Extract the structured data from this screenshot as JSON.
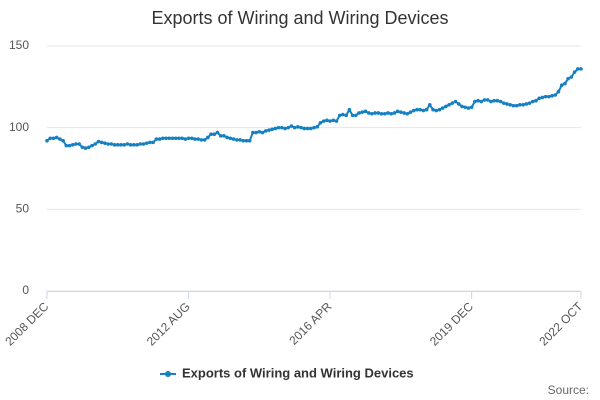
{
  "chart_data": {
    "type": "line",
    "title": "Exports of Wiring and Wiring Devices",
    "source": "Source:",
    "categories": [
      "2008 DEC",
      null,
      null,
      null,
      null,
      null,
      null,
      null,
      null,
      null,
      null,
      null,
      null,
      null,
      null,
      null,
      null,
      null,
      null,
      null,
      null,
      null,
      null,
      null,
      null,
      null,
      null,
      null,
      null,
      null,
      null,
      null,
      null,
      null,
      null,
      null,
      null,
      null,
      null,
      null,
      null,
      null,
      null,
      null,
      "2012 AUG",
      null,
      null,
      null,
      null,
      null,
      null,
      null,
      null,
      null,
      null,
      null,
      null,
      null,
      null,
      null,
      null,
      null,
      null,
      null,
      null,
      null,
      null,
      null,
      null,
      null,
      null,
      null,
      null,
      null,
      null,
      null,
      null,
      null,
      null,
      null,
      null,
      null,
      null,
      null,
      null,
      null,
      null,
      null,
      "2016 APR",
      null,
      null,
      null,
      null,
      null,
      null,
      null,
      null,
      null,
      null,
      null,
      null,
      null,
      null,
      null,
      null,
      null,
      null,
      null,
      null,
      null,
      null,
      null,
      null,
      null,
      null,
      null,
      null,
      null,
      null,
      null,
      null,
      null,
      null,
      null,
      null,
      null,
      null,
      null,
      null,
      null,
      null,
      null,
      "2019 DEC",
      null,
      null,
      null,
      null,
      null,
      null,
      null,
      null,
      null,
      null,
      null,
      null,
      null,
      null,
      null,
      null,
      null,
      null,
      null,
      null,
      null,
      null,
      null,
      null,
      null,
      null,
      null,
      null,
      null,
      null,
      null,
      null,
      null,
      "2022 OCT"
    ],
    "series": [
      {
        "name": "Exports of Wiring and Wiring Devices",
        "color": "#1580c2",
        "values": [
          92,
          93.5,
          93.5,
          94,
          93,
          92,
          89,
          89,
          89.5,
          90,
          90,
          88,
          87.5,
          88,
          89,
          90,
          91.5,
          91,
          90.5,
          90,
          90,
          89.5,
          89.5,
          89.5,
          89.5,
          90,
          89.5,
          89.5,
          89.5,
          90,
          90,
          90.5,
          91,
          91,
          93,
          93,
          93.5,
          93.5,
          93.5,
          93.5,
          93.5,
          93.5,
          93.5,
          93,
          93.5,
          93.5,
          93,
          93,
          92.5,
          92.5,
          94,
          96,
          96,
          97,
          95,
          95,
          94,
          93.5,
          93,
          92.5,
          92.5,
          92,
          92,
          92,
          97,
          97,
          97.5,
          97,
          98,
          98.5,
          99,
          99.5,
          100,
          100,
          99.5,
          100,
          101,
          100,
          100.5,
          100,
          99.5,
          99.5,
          99.5,
          100,
          100.5,
          103,
          104,
          104.5,
          104,
          104.5,
          104,
          107.5,
          108,
          107.5,
          111,
          107.5,
          107.5,
          109,
          109.5,
          110,
          109,
          108.5,
          109,
          109,
          108.5,
          108.5,
          109,
          108.5,
          109,
          110,
          109.5,
          109,
          108.5,
          109.5,
          110.5,
          111,
          111,
          110.5,
          111,
          114,
          111,
          110.5,
          111,
          112,
          113,
          114,
          115,
          116,
          114.5,
          113,
          112.5,
          112,
          112.5,
          116,
          116.5,
          116,
          117,
          117,
          116,
          116.5,
          116.5,
          116,
          115,
          114.5,
          114,
          113.5,
          113.5,
          114,
          114,
          114.5,
          115,
          116,
          116.5,
          118,
          118.5,
          119,
          119,
          119.5,
          120,
          122,
          126,
          127,
          130,
          131,
          134,
          136,
          136
        ]
      }
    ],
    "ylim": [
      0,
      150
    ],
    "yticks": [
      0,
      50,
      100,
      150
    ],
    "grid": true
  }
}
